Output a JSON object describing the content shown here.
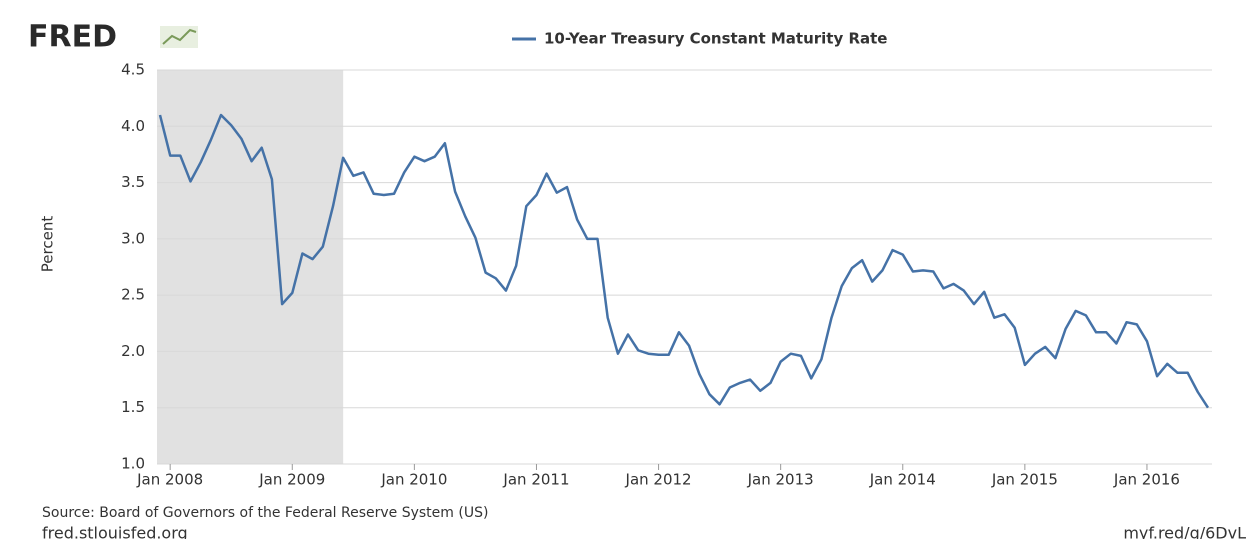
{
  "chart_data": {
    "type": "line",
    "logo": "FRED",
    "ylabel": "Percent",
    "source": "Source: Board of Governors of the Federal Reserve System (US)",
    "site": "fred.stlouisfed.org",
    "short_link": "myf.red/g/6DvL",
    "xlim": [
      "2007-12",
      "2016-07"
    ],
    "ylim": [
      1.0,
      4.5
    ],
    "yticks": [
      {
        "value": 1.0,
        "label": "1.0"
      },
      1.5,
      {
        "value": 2.0,
        "label": "2.0"
      },
      2.5,
      {
        "value": 3.0,
        "label": "3.0"
      },
      3.5,
      {
        "value": 4.0,
        "label": "4.0"
      },
      4.5
    ],
    "xticks": [
      {
        "value": "2008-01",
        "label": "Jan 2008"
      },
      {
        "value": "2009-01",
        "label": "Jan 2009"
      },
      {
        "value": "2010-01",
        "label": "Jan 2010"
      },
      {
        "value": "2011-01",
        "label": "Jan 2011"
      },
      {
        "value": "2012-01",
        "label": "Jan 2012"
      },
      {
        "value": "2013-01",
        "label": "Jan 2013"
      },
      {
        "value": "2014-01",
        "label": "Jan 2014"
      },
      {
        "value": "2015-01",
        "label": "Jan 2015"
      },
      {
        "value": "2016-01",
        "label": "Jan 2016"
      }
    ],
    "grid": true,
    "recession": {
      "start": "2007-12",
      "end": "2009-06",
      "color": "#e1e1e1"
    },
    "x": [
      "2007-12",
      "2008-01",
      "2008-02",
      "2008-03",
      "2008-04",
      "2008-05",
      "2008-06",
      "2008-07",
      "2008-08",
      "2008-09",
      "2008-10",
      "2008-11",
      "2008-12",
      "2009-01",
      "2009-02",
      "2009-03",
      "2009-04",
      "2009-05",
      "2009-06",
      "2009-07",
      "2009-08",
      "2009-09",
      "2009-10",
      "2009-11",
      "2009-12",
      "2010-01",
      "2010-02",
      "2010-03",
      "2010-04",
      "2010-05",
      "2010-06",
      "2010-07",
      "2010-08",
      "2010-09",
      "2010-10",
      "2010-11",
      "2010-12",
      "2011-01",
      "2011-02",
      "2011-03",
      "2011-04",
      "2011-05",
      "2011-06",
      "2011-07",
      "2011-08",
      "2011-09",
      "2011-10",
      "2011-11",
      "2011-12",
      "2012-01",
      "2012-02",
      "2012-03",
      "2012-04",
      "2012-05",
      "2012-06",
      "2012-07",
      "2012-08",
      "2012-09",
      "2012-10",
      "2012-11",
      "2012-12",
      "2013-01",
      "2013-02",
      "2013-03",
      "2013-04",
      "2013-05",
      "2013-06",
      "2013-07",
      "2013-08",
      "2013-09",
      "2013-10",
      "2013-11",
      "2013-12",
      "2014-01",
      "2014-02",
      "2014-03",
      "2014-04",
      "2014-05",
      "2014-06",
      "2014-07",
      "2014-08",
      "2014-09",
      "2014-10",
      "2014-11",
      "2014-12",
      "2015-01",
      "2015-02",
      "2015-03",
      "2015-04",
      "2015-05",
      "2015-06",
      "2015-07",
      "2015-08",
      "2015-09",
      "2015-10",
      "2015-11",
      "2015-12",
      "2016-01",
      "2016-02",
      "2016-03",
      "2016-04",
      "2016-05",
      "2016-06",
      "2016-07"
    ],
    "series": [
      {
        "name": "10-Year Treasury Constant Maturity Rate",
        "color": "#4572a7",
        "values": [
          4.1,
          3.74,
          3.74,
          3.51,
          3.68,
          3.88,
          4.1,
          4.01,
          3.89,
          3.69,
          3.81,
          3.53,
          2.42,
          2.52,
          2.87,
          2.82,
          2.93,
          3.29,
          3.72,
          3.56,
          3.59,
          3.4,
          3.39,
          3.4,
          3.59,
          3.73,
          3.69,
          3.73,
          3.85,
          3.42,
          3.2,
          3.01,
          2.7,
          2.65,
          2.54,
          2.76,
          3.29,
          3.39,
          3.58,
          3.41,
          3.46,
          3.17,
          3.0,
          3.0,
          2.3,
          1.98,
          2.15,
          2.01,
          1.98,
          1.97,
          1.97,
          2.17,
          2.05,
          1.8,
          1.62,
          1.53,
          1.68,
          1.72,
          1.75,
          1.65,
          1.72,
          1.91,
          1.98,
          1.96,
          1.76,
          1.93,
          2.3,
          2.58,
          2.74,
          2.81,
          2.62,
          2.72,
          2.9,
          2.86,
          2.71,
          2.72,
          2.71,
          2.56,
          2.6,
          2.54,
          2.42,
          2.53,
          2.3,
          2.33,
          2.21,
          1.88,
          1.98,
          2.04,
          1.94,
          2.2,
          2.36,
          2.32,
          2.17,
          2.17,
          2.07,
          2.26,
          2.24,
          2.09,
          1.78,
          1.89,
          1.81,
          1.81,
          1.64,
          1.5
        ]
      }
    ]
  }
}
